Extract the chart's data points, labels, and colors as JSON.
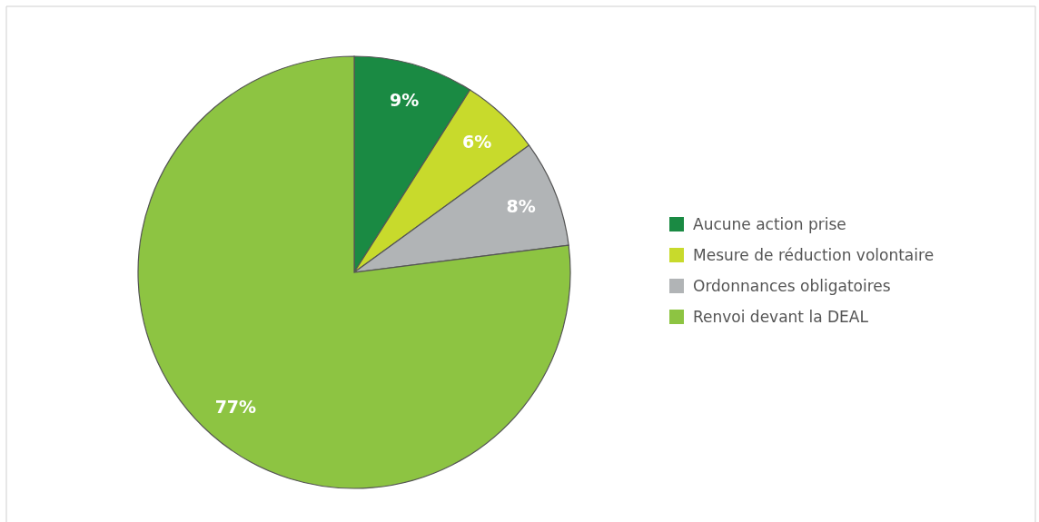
{
  "chart_data": {
    "type": "pie",
    "categories": [
      "Aucune action prise",
      "Mesure de réduction volontaire",
      "Ordonnances obligatoires",
      "Renvoi devant la DEAL"
    ],
    "values": [
      9,
      6,
      8,
      77
    ],
    "colors": [
      "#1a8a43",
      "#c8da2c",
      "#b1b4b6",
      "#8dc442"
    ],
    "value_labels": [
      "9%",
      "6%",
      "8%",
      "77%"
    ],
    "legend": "right"
  }
}
